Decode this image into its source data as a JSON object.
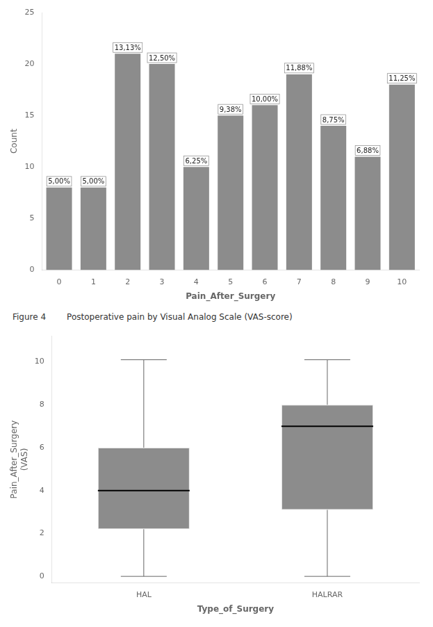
{
  "chart_data": [
    {
      "type": "bar",
      "categories": [
        0,
        1,
        2,
        3,
        4,
        5,
        6,
        7,
        8,
        9,
        10
      ],
      "values": [
        8,
        8,
        21,
        20,
        10,
        15,
        16,
        19,
        14,
        11,
        18
      ],
      "value_labels": [
        "5,00%",
        "5,00%",
        "13,13%",
        "12,50%",
        "6,25%",
        "9,38%",
        "10,00%",
        "11,88%",
        "8,75%",
        "6,88%",
        "11,25%"
      ],
      "data_labels": true,
      "color": "#8c8c8c",
      "xlabel": "Pain_After_Surgery",
      "ylabel": "Count",
      "ylim": [
        0,
        25
      ],
      "yticks": [
        0,
        5,
        10,
        15,
        20,
        25
      ],
      "grid": false
    },
    {
      "type": "box",
      "subtitle": "Figure 4",
      "title": "Postoperative pain by Visual Analog Scale (VAS-score)",
      "categories": [
        "HAL",
        "HALRAR"
      ],
      "boxes": [
        {
          "min": 0,
          "q1": 2.2,
          "median": 4.0,
          "q3": 6.0,
          "max": 10.1
        },
        {
          "min": 0,
          "q1": 3.1,
          "median": 7.0,
          "q3": 8.0,
          "max": 10.1
        }
      ],
      "color": "#8c8c8c",
      "xlabel": "Type_of_Surgery",
      "ylabel": "Pain_After_Surgery\n(VAS)",
      "ylim": [
        -0.3,
        11.2
      ],
      "yticks": [
        0,
        2,
        4,
        6,
        8,
        10
      ],
      "grid": false
    }
  ]
}
